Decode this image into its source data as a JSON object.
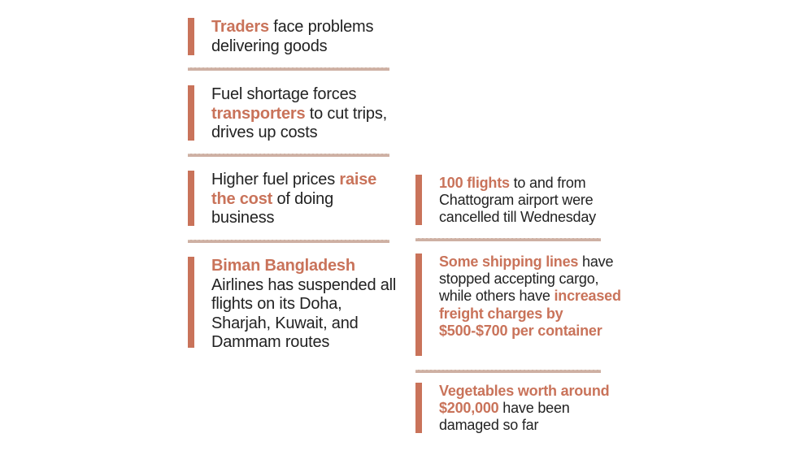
{
  "left_items": [
    {
      "parts": [
        {
          "text": "Traders",
          "hl": true
        },
        {
          "text": " face problems delivering goods",
          "hl": false
        }
      ]
    },
    {
      "parts": [
        {
          "text": "Fuel shortage forces ",
          "hl": false
        },
        {
          "text": "transporters",
          "hl": true
        },
        {
          "text": " to cut trips, drives up costs",
          "hl": false
        }
      ]
    },
    {
      "parts": [
        {
          "text": "Higher fuel prices ",
          "hl": false
        },
        {
          "text": "raise the cost",
          "hl": true
        },
        {
          "text": " of doing business",
          "hl": false
        }
      ]
    },
    {
      "parts": [
        {
          "text": "Biman Bangladesh",
          "hl": true
        },
        {
          "text": " Airlines has suspended all flights on its Doha, Sharjah, Kuwait, and Dammam routes",
          "hl": false
        }
      ]
    }
  ],
  "right_items": [
    {
      "parts": [
        {
          "text": "100 flights",
          "hl": true
        },
        {
          "text": " to and from Chattogram airport were cancelled till Wednesday",
          "hl": false
        }
      ]
    },
    {
      "parts": [
        {
          "text": "Some shipping lines",
          "hl": true
        },
        {
          "text": " have stopped accepting cargo, while others have ",
          "hl": false
        },
        {
          "text": "increased freight charges by $500-$700 per container",
          "hl": true
        }
      ]
    },
    {
      "parts": [
        {
          "text": "Vegetables worth around $200,000",
          "hl": true
        },
        {
          "text": " have been damaged so far",
          "hl": false
        }
      ]
    }
  ],
  "colors": {
    "accent": "#c9735a",
    "text": "#222222",
    "separator": "#c9a89a"
  }
}
